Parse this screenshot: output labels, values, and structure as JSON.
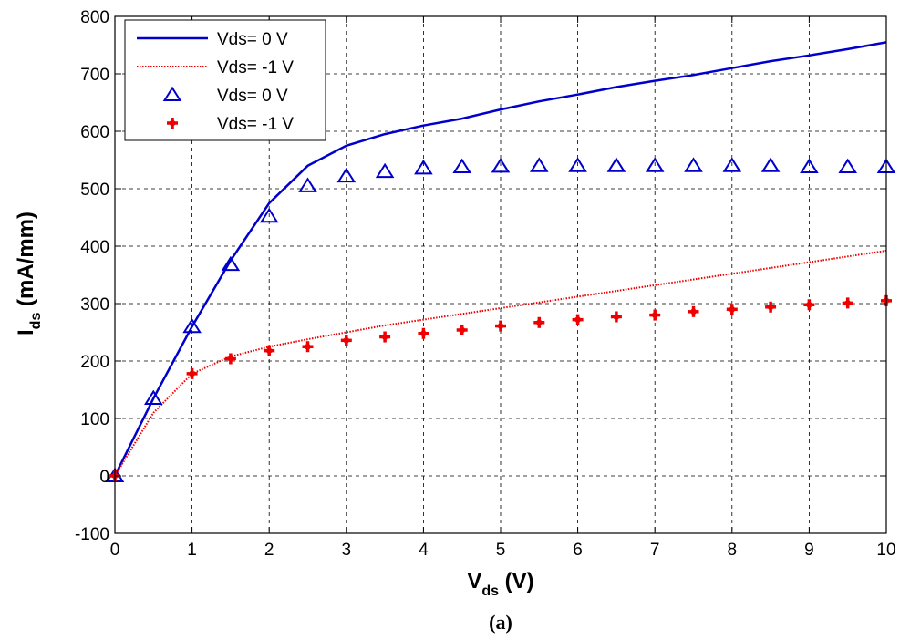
{
  "chart_data": {
    "type": "line",
    "xlabel_main": "V",
    "xlabel_sub": "ds",
    "xlabel_unit": " (V)",
    "ylabel_main": "I",
    "ylabel_sub": "ds",
    "ylabel_unit": " (mA/mm)",
    "caption": "(a)",
    "xlim": [
      0,
      10
    ],
    "ylim": [
      -100,
      800
    ],
    "xticks": [
      0,
      1,
      2,
      3,
      4,
      5,
      6,
      7,
      8,
      9,
      10
    ],
    "yticks": [
      -100,
      0,
      100,
      200,
      300,
      400,
      500,
      600,
      700,
      800
    ],
    "grid": true,
    "legend_position": "top-left",
    "series": [
      {
        "name": "Vds= 0 V",
        "style": "solid-line",
        "color": "#0000cc",
        "x": [
          0,
          0.5,
          1,
          1.5,
          2,
          2.5,
          3,
          3.5,
          4,
          4.5,
          5,
          5.5,
          6,
          6.5,
          7,
          7.5,
          8,
          8.5,
          9,
          9.5,
          10
        ],
        "y": [
          0,
          135,
          260,
          375,
          475,
          540,
          575,
          595,
          610,
          622,
          638,
          652,
          664,
          677,
          688,
          698,
          710,
          722,
          732,
          743,
          755
        ]
      },
      {
        "name": "Vds= -1 V",
        "style": "dotted-line",
        "color": "#ee0000",
        "x": [
          0,
          0.5,
          1,
          1.5,
          2,
          2.5,
          3,
          3.5,
          4,
          4.5,
          5,
          5.5,
          6,
          6.5,
          7,
          7.5,
          8,
          8.5,
          9,
          9.5,
          10
        ],
        "y": [
          0,
          110,
          178,
          208,
          225,
          238,
          250,
          262,
          272,
          282,
          292,
          302,
          312,
          322,
          332,
          342,
          352,
          362,
          372,
          382,
          392
        ]
      },
      {
        "name": "Vds= 0 V",
        "style": "triangle-marker",
        "color": "#0000cc",
        "x": [
          0,
          0.5,
          1,
          1.5,
          2,
          2.5,
          3,
          3.5,
          4,
          4.5,
          5,
          5.5,
          6,
          6.5,
          7,
          7.5,
          8,
          8.5,
          9,
          9.5,
          10
        ],
        "y": [
          0,
          135,
          260,
          368,
          452,
          505,
          522,
          530,
          536,
          538,
          539,
          540,
          540,
          540,
          540,
          540,
          540,
          540,
          538,
          538,
          538
        ]
      },
      {
        "name": "Vds= -1 V",
        "style": "plus-marker",
        "color": "#ee0000",
        "x": [
          0,
          1,
          1.5,
          2,
          2.5,
          3,
          3.5,
          4,
          4.5,
          5,
          5.5,
          6,
          6.5,
          7,
          7.5,
          8,
          8.5,
          9,
          9.5,
          10
        ],
        "y": [
          0,
          178,
          204,
          218,
          225,
          236,
          242,
          248,
          254,
          261,
          267,
          272,
          277,
          280,
          286,
          290,
          294,
          298,
          301,
          305
        ]
      }
    ]
  }
}
